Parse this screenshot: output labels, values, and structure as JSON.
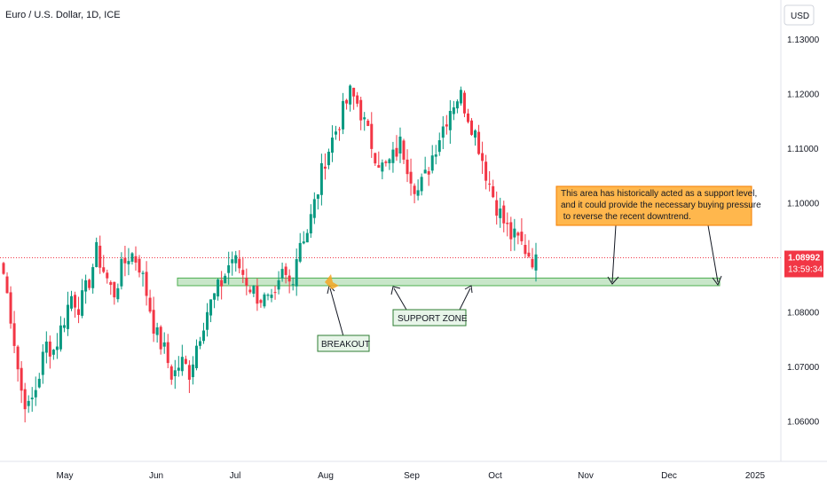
{
  "header": {
    "title": "Euro / U.S. Dollar, 1D, ICE"
  },
  "price_scale": {
    "currency": "USD",
    "last_price": "1.08992",
    "countdown": "13:59:34"
  },
  "annotations": {
    "note": [
      "This area has historically acted as a support level,",
      "and it could provide the necessary buying pressure",
      " to reverse the recent downtrend."
    ],
    "support_zone": "SUPPORT ZONE",
    "breakout": "BREAKOUT"
  },
  "colors": {
    "up": "#089981",
    "down": "#f23645",
    "zone_fill": "#c8e6c9",
    "zone_stroke": "#4caf50",
    "note_fill": "#ffb74d",
    "note_stroke": "#f57c00",
    "label_fill": "#e8f5e9",
    "label_stroke": "#2e7d32",
    "price_line": "#f23645",
    "axis_text": "#131722",
    "border": "#e0e3eb"
  },
  "chart_data": {
    "type": "candlestick",
    "title": "Euro / U.S. Dollar, 1D, ICE",
    "x_ticks": [
      "May",
      "Jun",
      "Jul",
      "Aug",
      "Sep",
      "Oct",
      "Nov",
      "Dec",
      "2025"
    ],
    "y_ticks": [
      "1.13000",
      "1.12000",
      "1.11000",
      "1.10000",
      "1.09000",
      "1.08000",
      "1.07000",
      "1.06000"
    ],
    "ylim": [
      1.052,
      1.134
    ],
    "last_price": 1.08992,
    "support_zone": [
      1.0848,
      1.0862
    ],
    "series": [
      {
        "name": "EURUSD",
        "close_path": [
          1.087,
          1.078,
          1.066,
          1.062,
          1.067,
          1.074,
          1.073,
          1.078,
          1.083,
          1.081,
          1.085,
          1.091,
          1.087,
          1.083,
          1.088,
          1.091,
          1.089,
          1.083,
          1.076,
          1.073,
          1.068,
          1.071,
          1.069,
          1.075,
          1.08,
          1.083,
          1.086,
          1.09,
          1.088,
          1.085,
          1.083,
          1.082,
          1.081,
          1.087,
          1.085,
          1.093,
          1.095,
          1.101,
          1.108,
          1.112,
          1.116,
          1.12,
          1.118,
          1.113,
          1.109,
          1.106,
          1.108,
          1.111,
          1.106,
          1.102,
          1.105,
          1.11,
          1.114,
          1.118,
          1.12,
          1.116,
          1.112,
          1.106,
          1.101,
          1.097,
          1.094,
          1.093,
          1.091,
          1.089
        ]
      }
    ]
  }
}
